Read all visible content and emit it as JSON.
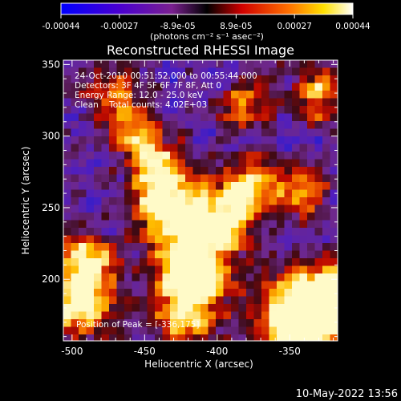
{
  "colorbar": {
    "tick_labels": [
      "-0.00044",
      "-0.00027",
      "-8.9e-05",
      "8.9e-05",
      "0.00027",
      "0.00044"
    ],
    "units": "(photons cm⁻² s⁻¹ asec⁻²)",
    "range": [
      -0.00044,
      0.00044
    ],
    "palette": [
      "#0000ff",
      "#5a00c0",
      "#8a2080",
      "#000000",
      "#ff0000",
      "#ff8a00",
      "#ffff00",
      "#ffffff"
    ]
  },
  "chart_data": {
    "type": "heatmap",
    "title": "Reconstructed RHESSI Image",
    "xlabel": "Heliocentric X (arcsec)",
    "ylabel": "Heliocentric Y (arcsec)",
    "xlim": [
      -506,
      -317
    ],
    "ylim": [
      157,
      353
    ],
    "x_ticks": [
      -500,
      -450,
      -400,
      -350
    ],
    "y_ticks": [
      200,
      250,
      300,
      350
    ],
    "peak_position": [
      -336,
      175
    ],
    "annotations": [
      "24-Oct-2010 00:51:52.000 to 00:55:44.000",
      "Detectors: 3F 4F 5F 6F 7F 8F, Att 0",
      "Energy Range: 12.0 - 25.0 keV",
      "Clean    Total counts: 4.02E+03"
    ],
    "peak_label": "Position of Peak = [-336,175]"
  },
  "footer": {
    "timestamp": "10-May-2022 13:56"
  }
}
